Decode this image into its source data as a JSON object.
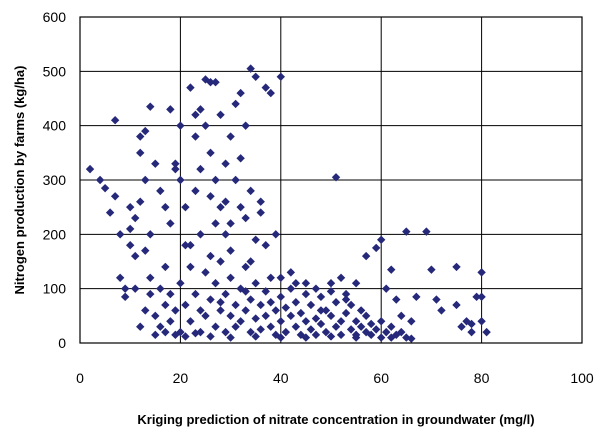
{
  "chart_data": {
    "type": "scatter",
    "title": "",
    "xlabel": "Kriging prediction of nitrate concentration in groundwater (mg/l)",
    "ylabel": "Nitrogen production by farms (kg/ha)",
    "xlim": [
      0,
      100
    ],
    "ylim": [
      0,
      600
    ],
    "xticks": [
      "0",
      "20",
      "40",
      "60",
      "80",
      "100"
    ],
    "yticks": [
      "0",
      "100",
      "200",
      "300",
      "400",
      "500",
      "600"
    ],
    "grid": true,
    "legend": "none",
    "marker": "diamond",
    "marker_color": "#26287a",
    "series": [
      {
        "points": [
          [
            2,
            320
          ],
          [
            4,
            300
          ],
          [
            5,
            285
          ],
          [
            6,
            240
          ],
          [
            7,
            270
          ],
          [
            7,
            410
          ],
          [
            8,
            200
          ],
          [
            8,
            120
          ],
          [
            9,
            100
          ],
          [
            9,
            85
          ],
          [
            10,
            250
          ],
          [
            10,
            180
          ],
          [
            11,
            230
          ],
          [
            11,
            160
          ],
          [
            12,
            350
          ],
          [
            12,
            380
          ],
          [
            13,
            300
          ],
          [
            13,
            390
          ],
          [
            14,
            435
          ],
          [
            14,
            200
          ],
          [
            15,
            330
          ],
          [
            16,
            280
          ],
          [
            17,
            250
          ],
          [
            17,
            140
          ],
          [
            18,
            220
          ],
          [
            18,
            430
          ],
          [
            19,
            330
          ],
          [
            19,
            320
          ],
          [
            20,
            400
          ],
          [
            20,
            300
          ],
          [
            21,
            250
          ],
          [
            21,
            180
          ],
          [
            22,
            180
          ],
          [
            22,
            470
          ],
          [
            23,
            420
          ],
          [
            23,
            380
          ],
          [
            24,
            430
          ],
          [
            24,
            320
          ],
          [
            25,
            485
          ],
          [
            25,
            400
          ],
          [
            26,
            480
          ],
          [
            26,
            350
          ],
          [
            27,
            480
          ],
          [
            27,
            300
          ],
          [
            28,
            420
          ],
          [
            28,
            250
          ],
          [
            29,
            260
          ],
          [
            29,
            200
          ],
          [
            30,
            380
          ],
          [
            30,
            220
          ],
          [
            31,
            440
          ],
          [
            31,
            300
          ],
          [
            32,
            460
          ],
          [
            32,
            250
          ],
          [
            33,
            400
          ],
          [
            34,
            505
          ],
          [
            34,
            280
          ],
          [
            35,
            490
          ],
          [
            36,
            260
          ],
          [
            37,
            470
          ],
          [
            37,
            180
          ],
          [
            38,
            460
          ],
          [
            39,
            200
          ],
          [
            40,
            490
          ],
          [
            40,
            120
          ],
          [
            42,
            130
          ],
          [
            45,
            110
          ],
          [
            47,
            100
          ],
          [
            50,
            95
          ],
          [
            51,
            305
          ],
          [
            52,
            120
          ],
          [
            55,
            110
          ],
          [
            57,
            160
          ],
          [
            59,
            175
          ],
          [
            60,
            190
          ],
          [
            61,
            100
          ],
          [
            62,
            135
          ],
          [
            63,
            80
          ],
          [
            64,
            50
          ],
          [
            65,
            205
          ],
          [
            66,
            40
          ],
          [
            67,
            85
          ],
          [
            69,
            205
          ],
          [
            70,
            135
          ],
          [
            71,
            80
          ],
          [
            72,
            60
          ],
          [
            75,
            70
          ],
          [
            75,
            140
          ],
          [
            76,
            30
          ],
          [
            77,
            40
          ],
          [
            78,
            20
          ],
          [
            78,
            35
          ],
          [
            79,
            85
          ],
          [
            80,
            85
          ],
          [
            80,
            130
          ],
          [
            80,
            40
          ],
          [
            81,
            20
          ],
          [
            12,
            30
          ],
          [
            13,
            60
          ],
          [
            14,
            90
          ],
          [
            15,
            50
          ],
          [
            16,
            100
          ],
          [
            16,
            30
          ],
          [
            17,
            70
          ],
          [
            18,
            40
          ],
          [
            18,
            90
          ],
          [
            19,
            60
          ],
          [
            20,
            20
          ],
          [
            20,
            110
          ],
          [
            21,
            70
          ],
          [
            22,
            40
          ],
          [
            22,
            140
          ],
          [
            23,
            90
          ],
          [
            24,
            60
          ],
          [
            24,
            20
          ],
          [
            25,
            130
          ],
          [
            25,
            50
          ],
          [
            26,
            80
          ],
          [
            27,
            30
          ],
          [
            27,
            110
          ],
          [
            28,
            60
          ],
          [
            28,
            150
          ],
          [
            29,
            20
          ],
          [
            29,
            90
          ],
          [
            30,
            50
          ],
          [
            30,
            120
          ],
          [
            31,
            70
          ],
          [
            31,
            30
          ],
          [
            32,
            100
          ],
          [
            32,
            40
          ],
          [
            33,
            60
          ],
          [
            33,
            140
          ],
          [
            34,
            20
          ],
          [
            34,
            80
          ],
          [
            35,
            110
          ],
          [
            35,
            45
          ],
          [
            36,
            70
          ],
          [
            36,
            25
          ],
          [
            37,
            95
          ],
          [
            37,
            50
          ],
          [
            38,
            30
          ],
          [
            38,
            120
          ],
          [
            39,
            60
          ],
          [
            39,
            15
          ],
          [
            40,
            85
          ],
          [
            40,
            40
          ],
          [
            41,
            65
          ],
          [
            41,
            20
          ],
          [
            42,
            100
          ],
          [
            42,
            50
          ],
          [
            43,
            30
          ],
          [
            43,
            75
          ],
          [
            44,
            55
          ],
          [
            44,
            15
          ],
          [
            45,
            90
          ],
          [
            45,
            40
          ],
          [
            46,
            25
          ],
          [
            46,
            70
          ],
          [
            47,
            45
          ],
          [
            47,
            15
          ],
          [
            48,
            85
          ],
          [
            48,
            35
          ],
          [
            49,
            60
          ],
          [
            49,
            20
          ],
          [
            50,
            110
          ],
          [
            50,
            50
          ],
          [
            51,
            30
          ],
          [
            51,
            75
          ],
          [
            52,
            40
          ],
          [
            52,
            15
          ],
          [
            53,
            90
          ],
          [
            53,
            55
          ],
          [
            54,
            25
          ],
          [
            54,
            70
          ],
          [
            55,
            40
          ],
          [
            55,
            15
          ],
          [
            56,
            60
          ],
          [
            56,
            30
          ],
          [
            57,
            20
          ],
          [
            57,
            50
          ],
          [
            58,
            35
          ],
          [
            58,
            15
          ],
          [
            59,
            25
          ],
          [
            60,
            40
          ],
          [
            60,
            10
          ],
          [
            61,
            20
          ],
          [
            62,
            30
          ],
          [
            62,
            10
          ],
          [
            63,
            15
          ],
          [
            64,
            20
          ],
          [
            65,
            10
          ],
          [
            66,
            8
          ],
          [
            15,
            15
          ],
          [
            17,
            20
          ],
          [
            19,
            15
          ],
          [
            21,
            12
          ],
          [
            23,
            18
          ],
          [
            26,
            12
          ],
          [
            30,
            10
          ],
          [
            35,
            12
          ],
          [
            40,
            10
          ],
          [
            45,
            10
          ],
          [
            50,
            12
          ],
          [
            55,
            10
          ],
          [
            28,
            75
          ],
          [
            33,
            95
          ],
          [
            38,
            75
          ],
          [
            43,
            110
          ],
          [
            48,
            60
          ],
          [
            53,
            80
          ],
          [
            26,
            160
          ],
          [
            30,
            170
          ],
          [
            34,
            150
          ],
          [
            24,
            200
          ],
          [
            33,
            230
          ],
          [
            36,
            240
          ],
          [
            23,
            280
          ],
          [
            27,
            220
          ],
          [
            35,
            190
          ],
          [
            14,
            120
          ],
          [
            13,
            170
          ],
          [
            11,
            100
          ],
          [
            10,
            210
          ],
          [
            12,
            260
          ],
          [
            32,
            340
          ],
          [
            29,
            330
          ],
          [
            26,
            270
          ]
        ]
      }
    ]
  }
}
